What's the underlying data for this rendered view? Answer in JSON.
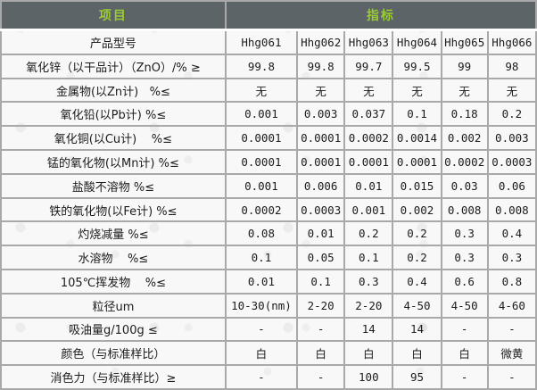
{
  "table": {
    "header": {
      "item_label": "项目",
      "index_label": "指标"
    },
    "product_columns": [
      "Hhg061",
      "Hhg062",
      "Hhg063",
      "Hhg064",
      "Hhg065",
      "Hhg066"
    ],
    "rows": [
      {
        "label": "产品型号",
        "values": [
          "Hhg061",
          "Hhg062",
          "Hhg063",
          "Hhg064",
          "Hhg065",
          "Hhg066"
        ]
      },
      {
        "label": "氧化锌（以干品计）（ZnO）/% ≥",
        "values": [
          "99.8",
          "99.8",
          "99.7",
          "99.5",
          "99",
          "98"
        ]
      },
      {
        "label": "金属物(以Zn计)   %≤",
        "values": [
          "无",
          "无",
          "无",
          "无",
          "无",
          "无"
        ]
      },
      {
        "label": "氧化铅(以Pb计) %≤",
        "values": [
          "0.001",
          "0.003",
          "0.037",
          "0.1",
          "0.18",
          "0.2"
        ]
      },
      {
        "label": "氧化铜(以Cu计)    %≤",
        "values": [
          "0.0001",
          "0.0001",
          "0.0002",
          "0.0014",
          "0.002",
          "0.003"
        ]
      },
      {
        "label": "锰的氧化物(以Mn计) %≤",
        "values": [
          "0.0001",
          "0.0001",
          "0.0001",
          "0.0001",
          "0.0002",
          "0.0003"
        ]
      },
      {
        "label": "盐酸不溶物 %≤",
        "values": [
          "0.001",
          "0.006",
          "0.01",
          "0.015",
          "0.03",
          "0.06"
        ]
      },
      {
        "label": "铁的氧化物(以Fe计) %≤",
        "values": [
          "0.0002",
          "0.0003",
          "0.001",
          "0.002",
          "0.008",
          "0.008"
        ]
      },
      {
        "label": "灼烧减量 %≤",
        "values": [
          "0.08",
          "0.01",
          "0.2",
          "0.2",
          "0.3",
          "0.4"
        ]
      },
      {
        "label": "水溶物    %≤",
        "values": [
          "0.1",
          "0.05",
          "0.1",
          "0.2",
          "0.3",
          "0.3"
        ]
      },
      {
        "label": "105℃挥发物    %≤",
        "values": [
          "0.01",
          "0.1",
          "0.3",
          "0.4",
          "0.6",
          "0.8"
        ]
      },
      {
        "label": "粒径um",
        "values": [
          "10-30(nm)",
          "2-20",
          "2-20",
          "4-50",
          "4-50",
          "4-60"
        ]
      },
      {
        "label": "吸油量g/100g ≤",
        "values": [
          "-",
          "-",
          "14",
          "14",
          "-",
          "-"
        ]
      },
      {
        "label": "颜色（与标准样比）",
        "values": [
          "白",
          "白",
          "白",
          "白",
          "白",
          "微黄"
        ]
      },
      {
        "label": "消色力（与标准样比）≥",
        "values": [
          "-",
          "-",
          "100",
          "95",
          "-",
          "-"
        ]
      }
    ],
    "colors": {
      "header_background": "#5d6468",
      "header_text": "#99cc33",
      "grid_border": "#a9a9a9",
      "cell_background": "#f8f8f8",
      "body_text": "#1c1c1c"
    }
  }
}
